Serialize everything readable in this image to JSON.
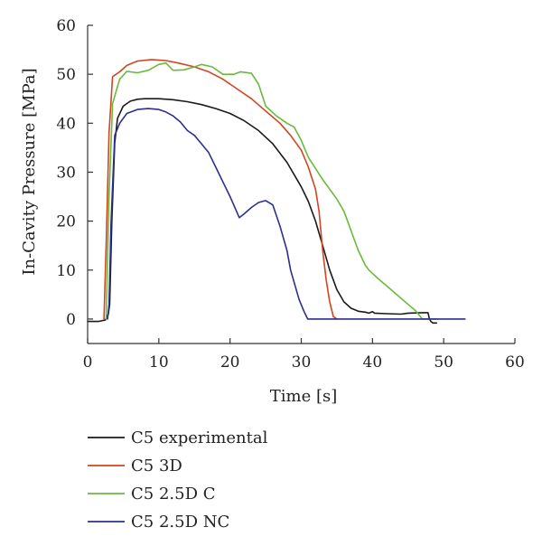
{
  "chart_data": {
    "type": "line",
    "xlabel": "Time [s]",
    "ylabel": "In-Cavity Pressure [MPa]",
    "xlim": [
      0,
      60
    ],
    "ylim": [
      -5,
      60
    ],
    "x_ticks": [
      0,
      10,
      20,
      30,
      40,
      50,
      60
    ],
    "y_ticks": [
      0,
      10,
      20,
      30,
      40,
      50,
      60
    ],
    "grid": false,
    "legend_position": "below",
    "series": [
      {
        "name": "C5 experimental",
        "color": "#1a1a1a",
        "points": [
          [
            0,
            -0.5
          ],
          [
            1.5,
            -0.5
          ],
          [
            2.5,
            -0.2
          ],
          [
            2.9,
            1
          ],
          [
            3.1,
            3
          ],
          [
            3.4,
            20
          ],
          [
            3.8,
            36
          ],
          [
            4.2,
            41
          ],
          [
            5,
            43.5
          ],
          [
            6,
            44.5
          ],
          [
            7,
            44.9
          ],
          [
            8,
            45
          ],
          [
            10,
            45
          ],
          [
            12,
            44.8
          ],
          [
            14,
            44.4
          ],
          [
            16,
            43.8
          ],
          [
            18,
            43
          ],
          [
            20,
            42
          ],
          [
            22,
            40.5
          ],
          [
            24,
            38.5
          ],
          [
            26,
            35.8
          ],
          [
            28,
            32
          ],
          [
            30,
            27
          ],
          [
            31,
            24
          ],
          [
            32,
            20
          ],
          [
            33,
            15
          ],
          [
            34,
            10
          ],
          [
            35,
            6
          ],
          [
            36,
            3.5
          ],
          [
            37,
            2.2
          ],
          [
            38,
            1.6
          ],
          [
            39,
            1.4
          ],
          [
            39.5,
            1.2
          ],
          [
            40,
            1.5
          ],
          [
            40.3,
            1.2
          ],
          [
            42,
            1.1
          ],
          [
            44,
            1
          ],
          [
            45,
            1.2
          ],
          [
            47,
            1.3
          ],
          [
            47.8,
            1.3
          ],
          [
            48,
            0
          ],
          [
            48.2,
            -0.5
          ],
          [
            48.5,
            -0.8
          ],
          [
            49,
            -0.8
          ]
        ]
      },
      {
        "name": "C5 3D",
        "color": "#d2451e",
        "points": [
          [
            2.3,
            0
          ],
          [
            2.6,
            15
          ],
          [
            3.0,
            38
          ],
          [
            3.5,
            49.5
          ],
          [
            4.5,
            50.5
          ],
          [
            5.5,
            51.8
          ],
          [
            7,
            52.7
          ],
          [
            9,
            53
          ],
          [
            11,
            52.8
          ],
          [
            13,
            52.2
          ],
          [
            15,
            51.5
          ],
          [
            17,
            50.5
          ],
          [
            19,
            49
          ],
          [
            21,
            47
          ],
          [
            23,
            45
          ],
          [
            25,
            42.5
          ],
          [
            27,
            40
          ],
          [
            28.5,
            37.5
          ],
          [
            30,
            34.5
          ],
          [
            31,
            31
          ],
          [
            32,
            26.5
          ],
          [
            32.5,
            22
          ],
          [
            33,
            14
          ],
          [
            33.5,
            8
          ],
          [
            34,
            3.5
          ],
          [
            34.5,
            0.5
          ],
          [
            35,
            0
          ]
        ]
      },
      {
        "name": "C5 2.5D C",
        "color": "#6aba3c",
        "points": [
          [
            2.6,
            0
          ],
          [
            3.0,
            25
          ],
          [
            3.5,
            44
          ],
          [
            4.5,
            49
          ],
          [
            5.5,
            50.6
          ],
          [
            7,
            50.3
          ],
          [
            8.5,
            50.8
          ],
          [
            10,
            52
          ],
          [
            11,
            52.3
          ],
          [
            12,
            50.8
          ],
          [
            13.5,
            50.9
          ],
          [
            15,
            51.5
          ],
          [
            16,
            52
          ],
          [
            17.5,
            51.5
          ],
          [
            19,
            50
          ],
          [
            20.5,
            50
          ],
          [
            21.5,
            50.5
          ],
          [
            23,
            50.2
          ],
          [
            24,
            48
          ],
          [
            25,
            43.5
          ],
          [
            26.5,
            41.5
          ],
          [
            28,
            40
          ],
          [
            29,
            39.2
          ],
          [
            30,
            36.5
          ],
          [
            31,
            33
          ],
          [
            33,
            28.5
          ],
          [
            35,
            24.5
          ],
          [
            36,
            22
          ],
          [
            37,
            18
          ],
          [
            38,
            14
          ],
          [
            39,
            11
          ],
          [
            39.5,
            10
          ],
          [
            41,
            8
          ],
          [
            43,
            5.5
          ],
          [
            45,
            3
          ],
          [
            46,
            1.8
          ],
          [
            47,
            0
          ],
          [
            49,
            0
          ]
        ]
      },
      {
        "name": "C5 2.5D NC",
        "color": "#2d2f8e",
        "points": [
          [
            2.8,
            0
          ],
          [
            3.0,
            3
          ],
          [
            3.3,
            20
          ],
          [
            3.8,
            37.5
          ],
          [
            4.5,
            40
          ],
          [
            5.5,
            42
          ],
          [
            7,
            42.8
          ],
          [
            8.5,
            43
          ],
          [
            10,
            42.8
          ],
          [
            11,
            42.3
          ],
          [
            12,
            41.5
          ],
          [
            13,
            40.3
          ],
          [
            14,
            38.5
          ],
          [
            15,
            37.5
          ],
          [
            16,
            35.8
          ],
          [
            17,
            34
          ],
          [
            18,
            31
          ],
          [
            19,
            28
          ],
          [
            20,
            25
          ],
          [
            21.3,
            20.7
          ],
          [
            22,
            21.5
          ],
          [
            23,
            22.8
          ],
          [
            24,
            23.8
          ],
          [
            25,
            24.2
          ],
          [
            26,
            23.3
          ],
          [
            27,
            19
          ],
          [
            28,
            14
          ],
          [
            28.5,
            10
          ],
          [
            29,
            7.5
          ],
          [
            29.7,
            4
          ],
          [
            30.4,
            1.5
          ],
          [
            30.9,
            0
          ],
          [
            33,
            0
          ],
          [
            53,
            0
          ]
        ]
      }
    ]
  }
}
